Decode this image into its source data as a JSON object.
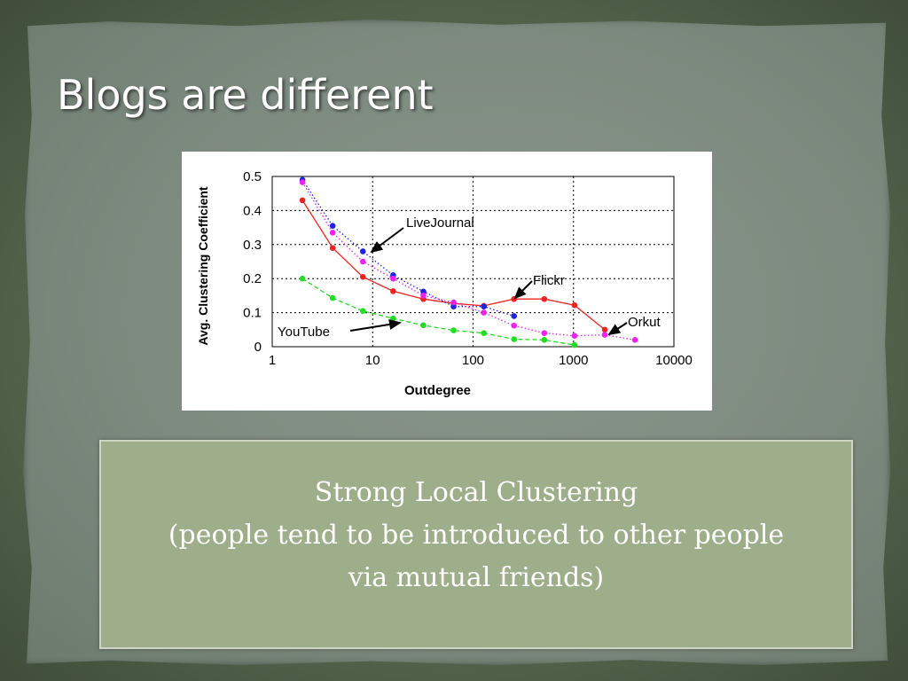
{
  "slide": {
    "title": "Blogs are different",
    "caption_line1": "Strong Local Clustering",
    "caption_line2": "(people tend to be introduced to other people",
    "caption_line3": "via mutual friends)"
  },
  "colors": {
    "flickr": "#ee2222",
    "livejournal": "#2222dd",
    "orkut": "#ee22ee",
    "youtube": "#22dd22"
  },
  "chart_data": {
    "type": "line",
    "xlabel": "Outdegree",
    "ylabel": "Avg. Clustering Coefficient",
    "xscale": "log",
    "xlim": [
      1,
      10000
    ],
    "ylim": [
      0,
      0.5
    ],
    "x_ticks": [
      "1",
      "10",
      "100",
      "1000",
      "10000"
    ],
    "y_ticks": [
      "0",
      "0.1",
      "0.2",
      "0.3",
      "0.4",
      "0.5"
    ],
    "grid": true,
    "series": [
      {
        "name": "Flickr",
        "color": "#ee2222",
        "style": "solid",
        "x": [
          2,
          4,
          8,
          16,
          32,
          64,
          128,
          256,
          512,
          1024,
          2048
        ],
        "y": [
          0.43,
          0.29,
          0.205,
          0.163,
          0.14,
          0.127,
          0.12,
          0.14,
          0.14,
          0.122,
          0.05
        ]
      },
      {
        "name": "LiveJournal",
        "color": "#2222dd",
        "style": "dotted",
        "x": [
          2,
          4,
          8,
          16,
          32,
          64,
          128,
          256
        ],
        "y": [
          0.49,
          0.355,
          0.28,
          0.21,
          0.162,
          0.118,
          0.118,
          0.09
        ]
      },
      {
        "name": "Orkut",
        "color": "#ee22ee",
        "style": "dotted",
        "x": [
          2,
          4,
          8,
          16,
          32,
          64,
          128,
          256,
          512,
          1024,
          2048,
          4096
        ],
        "y": [
          0.483,
          0.335,
          0.25,
          0.2,
          0.15,
          0.13,
          0.1,
          0.062,
          0.04,
          0.032,
          0.035,
          0.02
        ]
      },
      {
        "name": "YouTube",
        "color": "#22dd22",
        "style": "dashed",
        "x": [
          2,
          4,
          8,
          16,
          32,
          64,
          128,
          256,
          512,
          1024
        ],
        "y": [
          0.2,
          0.143,
          0.105,
          0.083,
          0.063,
          0.048,
          0.04,
          0.022,
          0.02,
          0.005
        ]
      }
    ],
    "annotations": [
      "LiveJournal",
      "Flickr",
      "Orkut",
      "YouTube"
    ]
  }
}
